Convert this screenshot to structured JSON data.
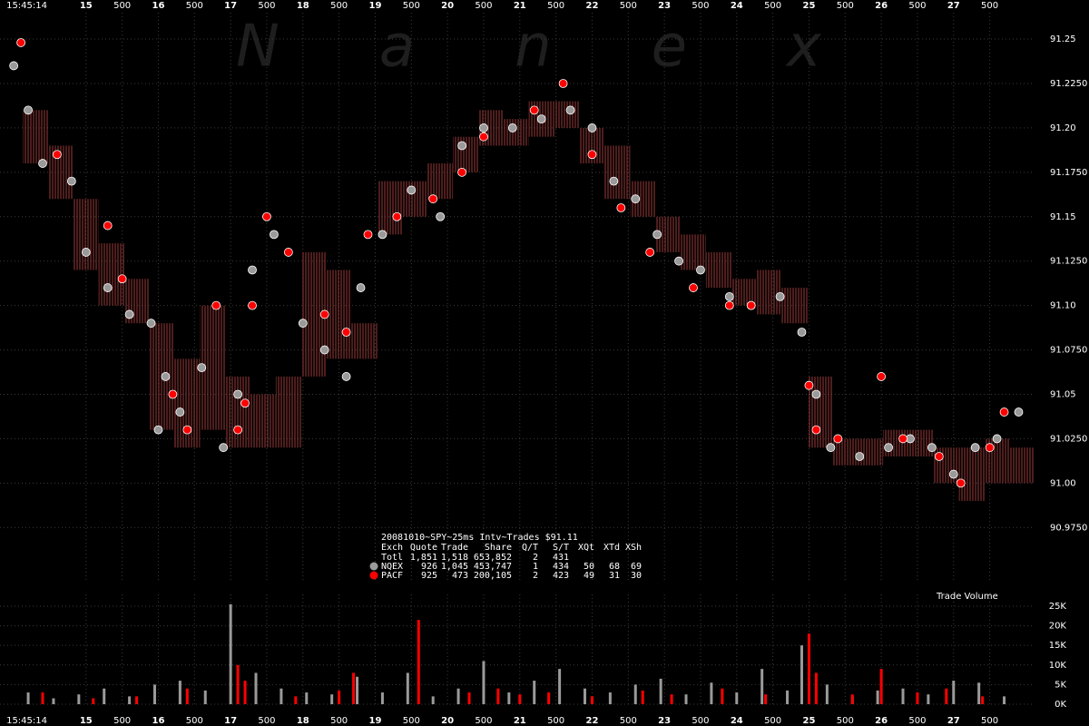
{
  "chart_data": [
    {
      "type": "scatter",
      "title": "Nanex",
      "start_label": "15:45:14",
      "xlim": [
        13.81,
        28.12
      ],
      "ylim": [
        90.945,
        91.272
      ],
      "xticks": [
        15,
        {
          "value": 15.5,
          "label": "500"
        },
        16,
        {
          "value": 16.5,
          "label": "500"
        },
        17,
        {
          "value": 17.5,
          "label": "500"
        },
        18,
        {
          "value": 18.5,
          "label": "500"
        },
        19,
        {
          "value": 19.5,
          "label": "500"
        },
        20,
        {
          "value": 20.5,
          "label": "500"
        },
        21,
        {
          "value": 21.5,
          "label": "500"
        },
        22,
        {
          "value": 22.5,
          "label": "500"
        },
        23,
        {
          "value": 23.5,
          "label": "500"
        },
        24,
        {
          "value": 24.5,
          "label": "500"
        },
        25,
        {
          "value": 25.5,
          "label": "500"
        },
        26,
        {
          "value": 26.5,
          "label": "500"
        },
        27,
        {
          "value": 27.5,
          "label": "500"
        }
      ],
      "yticks": [
        91.25,
        {
          "value": 91.225,
          "label": "91.2250"
        },
        {
          "value": 91.2,
          "label": "91.20"
        },
        {
          "value": 91.175,
          "label": "91.1750"
        },
        91.15,
        {
          "value": 91.125,
          "label": "91.1250"
        },
        {
          "value": 91.1,
          "label": "91.10"
        },
        {
          "value": 91.075,
          "label": "91.0750"
        },
        91.05,
        {
          "value": 91.025,
          "label": "91.0250"
        },
        {
          "value": 91.0,
          "label": "91.00"
        },
        {
          "value": 90.975,
          "label": "90.9750"
        }
      ],
      "grid": true,
      "quote_ranges": {
        "color": "#9b3a3a",
        "x": [
          14.3,
          14.65,
          15.0,
          15.35,
          15.7,
          16.05,
          16.4,
          16.75,
          17.1,
          17.45,
          17.8,
          18.15,
          18.5,
          18.85,
          19.2,
          19.55,
          19.9,
          20.25,
          20.6,
          20.95,
          21.3,
          21.65,
          22.0,
          22.35,
          22.7,
          23.05,
          23.4,
          23.75,
          24.1,
          24.45,
          24.8,
          25.15,
          25.5,
          25.85,
          26.2,
          26.55,
          26.9,
          27.25,
          27.6,
          27.95
        ],
        "low": [
          91.18,
          91.16,
          91.12,
          91.1,
          91.09,
          91.03,
          91.02,
          91.03,
          91.02,
          91.02,
          91.02,
          91.06,
          91.07,
          91.07,
          91.14,
          91.15,
          91.16,
          91.175,
          91.19,
          91.19,
          91.195,
          91.2,
          91.18,
          91.16,
          91.15,
          91.13,
          91.12,
          91.11,
          91.1,
          91.095,
          91.09,
          91.02,
          91.01,
          91.01,
          91.015,
          91.015,
          91.0,
          90.99,
          91.0,
          91.0
        ],
        "high": [
          91.21,
          91.19,
          91.16,
          91.135,
          91.115,
          91.09,
          91.07,
          91.1,
          91.06,
          91.05,
          91.06,
          91.13,
          91.12,
          91.09,
          91.17,
          91.17,
          91.18,
          91.195,
          91.21,
          91.205,
          91.215,
          91.215,
          91.2,
          91.19,
          91.17,
          91.15,
          91.14,
          91.13,
          91.115,
          91.12,
          91.11,
          91.06,
          91.025,
          91.025,
          91.03,
          91.03,
          91.02,
          91.02,
          91.025,
          91.02
        ]
      },
      "series": [
        {
          "name": "NQEX",
          "color": "#9a9a9a",
          "x": [
            14.0,
            14.2,
            14.4,
            14.8,
            15.0,
            15.3,
            15.6,
            15.9,
            16.0,
            16.1,
            16.3,
            16.6,
            16.9,
            17.1,
            17.3,
            17.6,
            18.0,
            18.3,
            18.6,
            18.8,
            19.1,
            19.5,
            19.9,
            20.2,
            20.5,
            20.9,
            21.3,
            21.7,
            22.0,
            22.3,
            22.6,
            22.9,
            23.2,
            23.5,
            23.9,
            24.2,
            24.6,
            24.9,
            25.1,
            25.3,
            25.7,
            26.1,
            26.4,
            26.7,
            27.0,
            27.3,
            27.6,
            27.9
          ],
          "values": [
            91.235,
            91.21,
            91.18,
            91.17,
            91.13,
            91.11,
            91.095,
            91.09,
            91.03,
            91.06,
            91.04,
            91.065,
            91.02,
            91.05,
            91.12,
            91.14,
            91.09,
            91.075,
            91.06,
            91.11,
            91.14,
            91.165,
            91.15,
            91.19,
            91.2,
            91.2,
            91.205,
            91.21,
            91.2,
            91.17,
            91.16,
            91.14,
            91.125,
            91.12,
            91.105,
            91.1,
            91.105,
            91.085,
            91.05,
            91.02,
            91.015,
            91.02,
            91.025,
            91.02,
            91.005,
            91.02,
            91.025,
            91.04
          ]
        },
        {
          "name": "PACF",
          "color": "#ff0000",
          "x": [
            14.1,
            14.6,
            15.3,
            15.5,
            16.2,
            16.4,
            16.8,
            17.1,
            17.2,
            17.3,
            17.5,
            17.8,
            18.3,
            18.6,
            18.9,
            19.3,
            19.8,
            20.2,
            20.5,
            21.2,
            21.6,
            22.0,
            22.4,
            22.8,
            23.4,
            23.9,
            24.2,
            25.0,
            25.1,
            25.4,
            26.0,
            26.3,
            26.8,
            27.1,
            27.5,
            27.7
          ],
          "values": [
            91.248,
            91.185,
            91.145,
            91.115,
            91.05,
            91.03,
            91.1,
            91.03,
            91.045,
            91.1,
            91.15,
            91.13,
            91.095,
            91.085,
            91.14,
            91.15,
            91.16,
            91.175,
            91.195,
            91.21,
            91.225,
            91.185,
            91.155,
            91.13,
            91.11,
            91.1,
            91.1,
            91.055,
            91.03,
            91.025,
            91.06,
            91.025,
            91.015,
            91.0,
            91.02,
            91.04
          ]
        }
      ],
      "table": {
        "title": "20081010~SPY~25ms Intv~Trades $91.11",
        "header": [
          "Exch",
          "Quote",
          "Trade",
          "Share",
          "Q/T",
          "S/T",
          "XQt",
          "XTd",
          "XSh"
        ],
        "total": [
          "Totl",
          "1,851",
          "1,518",
          "653,852",
          "2",
          "431"
        ],
        "rows": [
          [
            "926",
            "1,045",
            "453,747",
            "1",
            "434",
            "50",
            "68",
            "69"
          ],
          [
            "925",
            "473",
            "200,105",
            "2",
            "423",
            "49",
            "31",
            "30"
          ]
        ]
      }
    },
    {
      "type": "bar",
      "title": "Trade Volume",
      "start_label": "15:45:14",
      "xlim": [
        13.81,
        28.12
      ],
      "ylim": [
        0,
        28000
      ],
      "xticks": [
        15,
        {
          "value": 15.5,
          "label": "500"
        },
        16,
        {
          "value": 16.5,
          "label": "500"
        },
        17,
        {
          "value": 17.5,
          "label": "500"
        },
        18,
        {
          "value": 18.5,
          "label": "500"
        },
        19,
        {
          "value": 19.5,
          "label": "500"
        },
        20,
        {
          "value": 20.5,
          "label": "500"
        },
        21,
        {
          "value": 21.5,
          "label": "500"
        },
        22,
        {
          "value": 22.5,
          "label": "500"
        },
        23,
        {
          "value": 23.5,
          "label": "500"
        },
        24,
        {
          "value": 24.5,
          "label": "500"
        },
        25,
        {
          "value": 25.5,
          "label": "500"
        },
        26,
        {
          "value": 26.5,
          "label": "500"
        },
        27,
        {
          "value": 27.5,
          "label": "500"
        }
      ],
      "yticks": [
        {
          "value": 25000,
          "label": "25K"
        },
        {
          "value": 20000,
          "label": "20K"
        },
        {
          "value": 15000,
          "label": "15K"
        },
        {
          "value": 10000,
          "label": "10K"
        },
        {
          "value": 5000,
          "label": "5K"
        },
        {
          "value": 0,
          "label": "0K"
        }
      ],
      "grid": true,
      "series": [
        {
          "name": "NQEX",
          "color": "#9a9a9a",
          "x": [
            14.2,
            14.55,
            14.9,
            15.25,
            15.6,
            15.95,
            16.3,
            16.65,
            17.0,
            17.35,
            17.7,
            18.05,
            18.4,
            18.75,
            19.1,
            19.45,
            19.8,
            20.15,
            20.5,
            20.85,
            21.2,
            21.55,
            21.9,
            22.25,
            22.6,
            22.95,
            23.3,
            23.65,
            24.0,
            24.35,
            24.7,
            24.9,
            25.25,
            25.6,
            25.95,
            26.3,
            26.65,
            27.0,
            27.35,
            27.7
          ],
          "values": [
            3000,
            1500,
            2500,
            4000,
            2000,
            5000,
            6000,
            3500,
            25500,
            8000,
            4000,
            3000,
            2500,
            7000,
            3000,
            8000,
            2000,
            4000,
            11000,
            3000,
            6000,
            9000,
            4000,
            3000,
            5000,
            6500,
            2500,
            5500,
            3000,
            9000,
            3500,
            15000,
            5000,
            2000,
            3500,
            4000,
            2500,
            6000,
            5500,
            2000
          ]
        },
        {
          "name": "PACF",
          "color": "#ff0000",
          "x": [
            14.4,
            15.1,
            15.7,
            16.4,
            17.1,
            17.2,
            17.9,
            18.5,
            18.7,
            19.6,
            20.3,
            20.7,
            21.0,
            21.4,
            22.0,
            22.7,
            23.1,
            23.8,
            24.4,
            25.0,
            25.1,
            25.6,
            26.0,
            26.5,
            26.9,
            27.4
          ],
          "values": [
            3000,
            1500,
            2000,
            4000,
            10000,
            6000,
            2000,
            3500,
            8000,
            21500,
            3000,
            4000,
            2500,
            3000,
            2000,
            3500,
            2500,
            4000,
            2500,
            18000,
            8000,
            2500,
            9000,
            3000,
            4000,
            2000
          ]
        }
      ]
    }
  ]
}
